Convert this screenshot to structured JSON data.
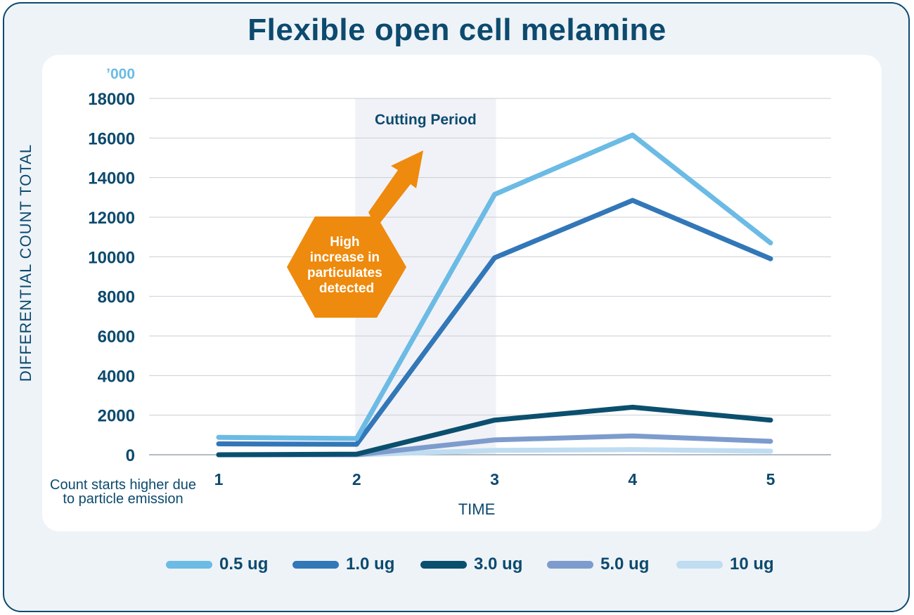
{
  "title": "Flexible open cell melamine",
  "chart_data": {
    "type": "line",
    "title": "Flexible open cell melamine",
    "xlabel": "TIME",
    "ylabel": "DIFFERENTIAL COUNT TOTAL",
    "y_unit": "’000",
    "x": [
      1,
      2,
      3,
      4,
      5
    ],
    "ylim": [
      0,
      18000
    ],
    "yticks": [
      0,
      2000,
      4000,
      6000,
      8000,
      10000,
      12000,
      14000,
      16000,
      18000
    ],
    "grid": true,
    "highlight": {
      "label": "Cutting Period",
      "x_range": [
        2,
        3
      ]
    },
    "annotation": {
      "text": "High increase in particulates detected",
      "color": "#ee8a0d"
    },
    "x_note": "Count starts higher due to particle emission",
    "series": [
      {
        "name": "0.5 ug",
        "color": "#6bbbe5",
        "values": [
          880,
          820,
          13150,
          16150,
          10700
        ]
      },
      {
        "name": "1.0 ug",
        "color": "#3277b8",
        "values": [
          550,
          530,
          9950,
          12850,
          9900
        ]
      },
      {
        "name": "3.0 ug",
        "color": "#0b4f6e",
        "values": [
          0,
          30,
          1750,
          2400,
          1750
        ]
      },
      {
        "name": "5.0 ug",
        "color": "#7d9ccd",
        "values": [
          0,
          0,
          750,
          950,
          680
        ]
      },
      {
        "name": "10 ug",
        "color": "#bfdcf1",
        "values": [
          0,
          0,
          220,
          260,
          180
        ]
      }
    ]
  }
}
